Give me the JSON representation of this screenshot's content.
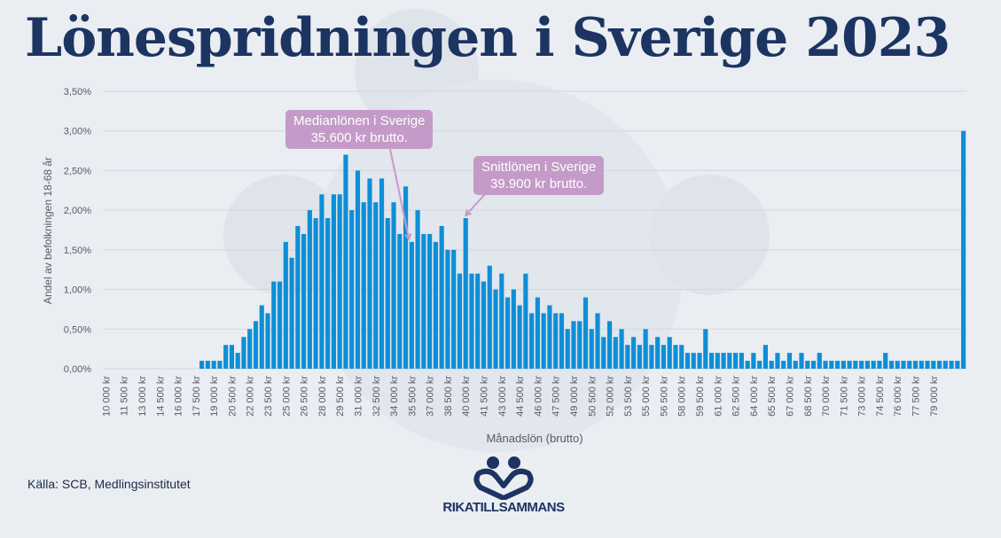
{
  "title": "Lönespridningen i Sverige 2023",
  "source": "Källa: SCB, Medlingsinstitutet",
  "logo": {
    "text": "RIKATILLSAMMANS"
  },
  "colors": {
    "bar": "#0d8fd6",
    "title": "#1c3461",
    "callout": "#c49bc8",
    "background": "#eaedf2"
  },
  "chart_data": {
    "type": "bar",
    "title": "Lönespridningen i Sverige 2023",
    "xlabel": "Månadslön (brutto)",
    "ylabel": "Andel av befolkningen 18-68 år",
    "ylim": [
      0,
      3.5
    ],
    "y_ticks": [
      "0,00%",
      "0,50%",
      "1,00%",
      "1,50%",
      "2,00%",
      "2,50%",
      "3,00%",
      "3,50%"
    ],
    "grid": true,
    "x_start": 10000,
    "bin_width": 500,
    "x_tick_labels": [
      "10 000 kr",
      "11 500 kr",
      "13 000 kr",
      "14 500 kr",
      "16 000 kr",
      "17 500 kr",
      "19 000 kr",
      "20 500 kr",
      "22 000 kr",
      "23 500 kr",
      "25 000 kr",
      "26 500 kr",
      "28 000 kr",
      "29 500 kr",
      "31 000 kr",
      "32 500 kr",
      "34 000 kr",
      "35 500 kr",
      "37 000 kr",
      "38 500 kr",
      "40 000 kr",
      "41 500 kr",
      "43 000 kr",
      "44 500 kr",
      "46 000 kr",
      "47 500 kr",
      "49 000 kr",
      "50 500 kr",
      "52 000 kr",
      "53 500 kr",
      "55 000 kr",
      "56 500 kr",
      "58 000 kr",
      "59 500 kr",
      "61 000 kr",
      "62 500 kr",
      "64 000 kr",
      "65 500 kr",
      "67 000 kr",
      "68 500 kr",
      "70 000 kr",
      "71 500 kr",
      "73 000 kr",
      "74 500 kr",
      "76 000 kr",
      "77 500 kr",
      "79 000 kr"
    ],
    "values": [
      0,
      0,
      0,
      0,
      0,
      0,
      0,
      0,
      0,
      0,
      0,
      0,
      0,
      0,
      0,
      0,
      0.1,
      0.1,
      0.1,
      0.1,
      0.3,
      0.3,
      0.2,
      0.4,
      0.5,
      0.6,
      0.8,
      0.7,
      1.1,
      1.1,
      1.6,
      1.4,
      1.8,
      1.7,
      2.0,
      1.9,
      2.2,
      1.9,
      2.2,
      2.2,
      2.7,
      2.0,
      2.5,
      2.1,
      2.4,
      2.1,
      2.4,
      1.9,
      2.1,
      1.7,
      2.3,
      1.6,
      2.0,
      1.7,
      1.7,
      1.6,
      1.8,
      1.5,
      1.5,
      1.2,
      1.9,
      1.2,
      1.2,
      1.1,
      1.3,
      1.0,
      1.2,
      0.9,
      1.0,
      0.8,
      1.2,
      0.7,
      0.9,
      0.7,
      0.8,
      0.7,
      0.7,
      0.5,
      0.6,
      0.6,
      0.9,
      0.5,
      0.7,
      0.4,
      0.6,
      0.4,
      0.5,
      0.3,
      0.4,
      0.3,
      0.5,
      0.3,
      0.4,
      0.3,
      0.4,
      0.3,
      0.3,
      0.2,
      0.2,
      0.2,
      0.5,
      0.2,
      0.2,
      0.2,
      0.2,
      0.2,
      0.2,
      0.1,
      0.2,
      0.1,
      0.3,
      0.1,
      0.2,
      0.1,
      0.2,
      0.1,
      0.2,
      0.1,
      0.1,
      0.2,
      0.1,
      0.1,
      0.1,
      0.1,
      0.1,
      0.1,
      0.1,
      0.1,
      0.1,
      0.1,
      0.2,
      0.1,
      0.1,
      0.1,
      0.1,
      0.1,
      0.1,
      0.1,
      0.1,
      0.1,
      0.1,
      0.1,
      0.1,
      3.0
    ],
    "annotations": [
      {
        "text_line1": "Medianlönen i Sverige",
        "text_line2": "35.600 kr brutto.",
        "x": 35500
      },
      {
        "text_line1": "Snittlönen i Sverige",
        "text_line2": "39.900 kr brutto.",
        "x": 40000
      }
    ]
  }
}
